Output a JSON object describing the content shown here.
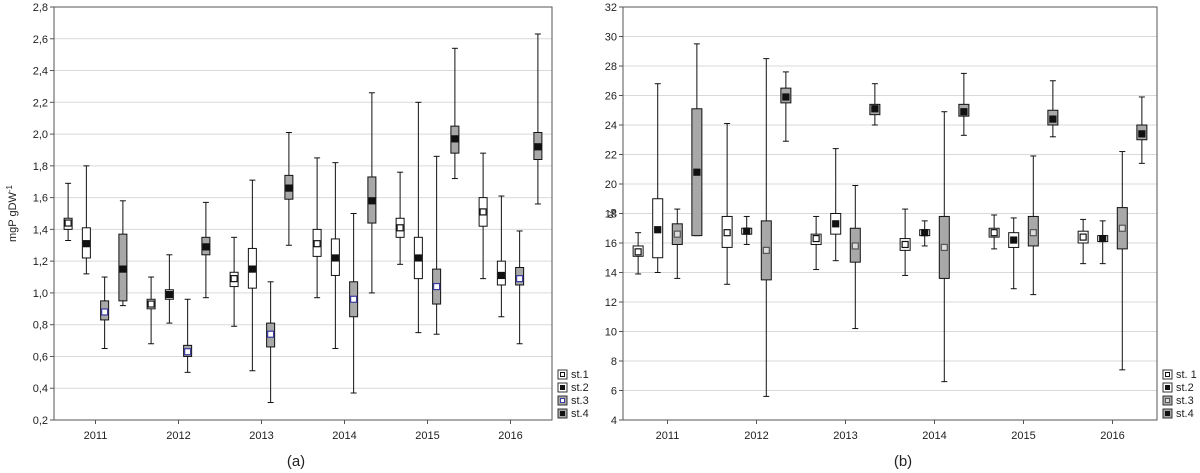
{
  "chart_data": [
    {
      "type": "boxplot",
      "caption": "(a)",
      "ylabel": "mgP gDW",
      "ylabel_sup": "-1",
      "ylim": [
        0.2,
        2.8
      ],
      "yticks": [
        "0,2",
        "0,4",
        "0,6",
        "0,8",
        "1,0",
        "1,2",
        "1,4",
        "1,6",
        "1,8",
        "2,0",
        "2,2",
        "2,4",
        "2,6",
        "2,8"
      ],
      "grid": true,
      "legend_position": "bottom-right",
      "categories": [
        "2011",
        "2012",
        "2013",
        "2014",
        "2015",
        "2016"
      ],
      "series": [
        {
          "name": "st.1",
          "median": [
            1.44,
            0.93,
            1.09,
            1.31,
            1.41,
            1.51
          ],
          "q1": [
            1.4,
            0.9,
            1.04,
            1.23,
            1.35,
            1.42
          ],
          "q3": [
            1.47,
            0.96,
            1.13,
            1.4,
            1.47,
            1.6
          ],
          "min": [
            1.33,
            0.68,
            0.79,
            0.97,
            1.18,
            1.09
          ],
          "max": [
            1.69,
            1.1,
            1.35,
            1.85,
            1.76,
            1.88
          ]
        },
        {
          "name": "st.2",
          "median": [
            1.31,
            0.99,
            1.15,
            1.22,
            1.22,
            1.11
          ],
          "q1": [
            1.22,
            0.96,
            1.03,
            1.11,
            1.09,
            1.05
          ],
          "q3": [
            1.41,
            1.02,
            1.28,
            1.34,
            1.35,
            1.2
          ],
          "min": [
            1.12,
            0.81,
            0.51,
            0.65,
            0.75,
            0.85
          ],
          "max": [
            1.8,
            1.24,
            1.71,
            1.82,
            2.2,
            1.61
          ]
        },
        {
          "name": "st.3",
          "median": [
            0.88,
            0.63,
            0.74,
            0.96,
            1.04,
            1.09
          ],
          "q1": [
            0.83,
            0.6,
            0.66,
            0.85,
            0.93,
            1.05
          ],
          "q3": [
            0.95,
            0.67,
            0.81,
            1.07,
            1.15,
            1.16
          ],
          "min": [
            0.65,
            0.5,
            0.31,
            0.37,
            0.74,
            0.68
          ],
          "max": [
            1.1,
            0.96,
            1.07,
            1.5,
            1.86,
            1.39
          ]
        },
        {
          "name": "st.4",
          "median": [
            1.15,
            1.29,
            1.66,
            1.58,
            1.97,
            1.92
          ],
          "q1": [
            0.95,
            1.24,
            1.59,
            1.44,
            1.88,
            1.84
          ],
          "q3": [
            1.37,
            1.35,
            1.74,
            1.73,
            2.05,
            2.01
          ],
          "min": [
            0.92,
            0.97,
            1.3,
            1.0,
            1.72,
            1.56
          ],
          "max": [
            1.58,
            1.57,
            2.01,
            2.26,
            2.54,
            2.63
          ]
        }
      ]
    },
    {
      "type": "boxplot",
      "caption": "(b)",
      "ylabel": "%",
      "ylim": [
        4,
        32
      ],
      "yticks": [
        "4",
        "6",
        "8",
        "10",
        "12",
        "14",
        "16",
        "18",
        "20",
        "22",
        "24",
        "26",
        "28",
        "30",
        "32"
      ],
      "grid": true,
      "legend_position": "bottom-right",
      "categories": [
        "2011",
        "2012",
        "2013",
        "2014",
        "2015",
        "2016"
      ],
      "series": [
        {
          "name": "st. 1",
          "median": [
            15.4,
            16.7,
            16.3,
            15.9,
            16.7,
            16.4
          ],
          "q1": [
            15.1,
            15.7,
            15.9,
            15.5,
            16.4,
            16.0
          ],
          "q3": [
            15.8,
            17.8,
            16.6,
            16.3,
            17.0,
            16.8
          ],
          "min": [
            13.9,
            13.2,
            14.2,
            13.8,
            15.6,
            14.6
          ],
          "max": [
            16.7,
            24.1,
            17.8,
            18.3,
            17.9,
            17.6
          ]
        },
        {
          "name": "st.2",
          "median": [
            16.9,
            16.8,
            17.3,
            16.7,
            16.2,
            16.3
          ],
          "q1": [
            15.0,
            16.6,
            16.6,
            16.5,
            15.7,
            16.1
          ],
          "q3": [
            19.0,
            17.0,
            18.0,
            16.9,
            16.7,
            16.5
          ],
          "min": [
            14.0,
            15.9,
            14.8,
            15.8,
            12.9,
            14.6
          ],
          "max": [
            26.8,
            17.8,
            22.4,
            17.5,
            17.7,
            17.5
          ]
        },
        {
          "name": "st.3",
          "median": [
            16.6,
            15.5,
            15.8,
            15.7,
            16.7,
            17.0
          ],
          "q1": [
            15.9,
            13.5,
            14.7,
            13.6,
            15.8,
            15.6
          ],
          "q3": [
            17.3,
            17.5,
            17.0,
            17.8,
            17.8,
            18.4
          ],
          "min": [
            13.6,
            5.6,
            10.2,
            6.6,
            12.5,
            7.4
          ],
          "max": [
            18.3,
            28.5,
            19.9,
            24.9,
            21.9,
            22.2
          ]
        },
        {
          "name": "st.4",
          "median": [
            20.8,
            25.9,
            25.1,
            24.9,
            24.4,
            23.4
          ],
          "q1": [
            16.5,
            25.5,
            24.7,
            24.6,
            24.0,
            23.0
          ],
          "q3": [
            25.1,
            26.5,
            25.4,
            25.4,
            25.0,
            24.0
          ],
          "min": [
            16.5,
            22.9,
            24.0,
            23.3,
            23.2,
            21.4
          ],
          "max": [
            29.5,
            27.6,
            26.8,
            27.5,
            27.0,
            25.9
          ]
        }
      ]
    }
  ],
  "styles": {
    "box_fill_light": "#ffffff",
    "box_fill_dark": "#a8a8a8",
    "grid_color": "#d9d9d9",
    "stroke": "#111111",
    "median_blue": "#3a3aa0"
  }
}
